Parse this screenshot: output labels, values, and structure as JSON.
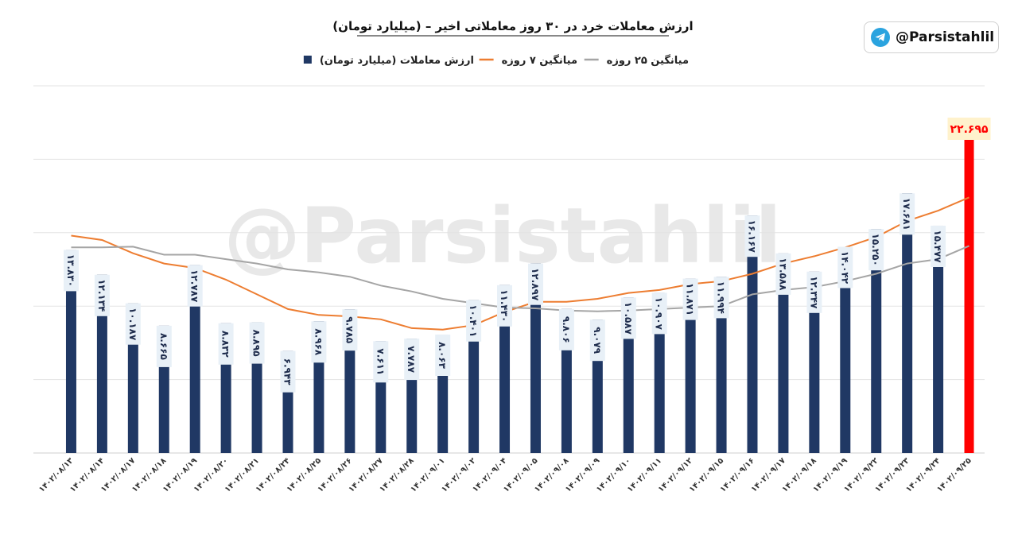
{
  "chart_data": {
    "type": "bar",
    "title": "ارزش معاملات خرد در ۳۰ روز معاملاتی اخیر – (میلیارد تومان)",
    "legend_position": "top",
    "grid": true,
    "ylim": [
      0,
      25000
    ],
    "categories": [
      "۱۴۰۲/۰۸/۱۳",
      "۱۴۰۲/۰۸/۱۴",
      "۱۴۰۲/۰۸/۱۷",
      "۱۴۰۲/۰۸/۱۸",
      "۱۴۰۲/۰۸/۱۹",
      "۱۴۰۲/۰۸/۲۰",
      "۱۴۰۲/۰۸/۲۱",
      "۱۴۰۲/۰۸/۲۴",
      "۱۴۰۲/۰۸/۲۵",
      "۱۴۰۲/۰۸/۲۶",
      "۱۴۰۲/۰۸/۲۷",
      "۱۴۰۲/۰۸/۲۸",
      "۱۴۰۲/۰۹/۰۱",
      "۱۴۰۲/۰۹/۰۲",
      "۱۴۰۲/۰۹/۰۴",
      "۱۴۰۲/۰۹/۰۵",
      "۱۴۰۲/۰۹/۰۸",
      "۱۴۰۲/۰۹/۰۹",
      "۱۴۰۲/۰۹/۱۰",
      "۱۴۰۲/۰۹/۱۱",
      "۱۴۰۲/۰۹/۱۲",
      "۱۴۰۲/۰۹/۱۵",
      "۱۴۰۲/۰۹/۱۶",
      "۱۴۰۲/۰۹/۱۷",
      "۱۴۰۲/۰۹/۱۸",
      "۱۴۰۲/۰۹/۱۹",
      "۱۴۰۲/۰۹/۲۲",
      "۱۴۰۲/۰۹/۲۳",
      "۱۴۰۲/۰۹/۲۴",
      "۱۴۰۲/۰۹/۲۵"
    ],
    "series": [
      {
        "name": "ارزش معاملات (میلیارد تومان)",
        "type": "bar",
        "color": "#203864",
        "highlight_color": "#ff0000",
        "values": [
          13830,
          12134,
          10187,
          8665,
          12787,
          8832,
          8895,
          6943,
          8968,
          9785,
          7611,
          7787,
          8063,
          10401,
          11430,
          12897,
          9806,
          9079,
          10587,
          10907,
          11871,
          11994,
          16167,
          13588,
          12347,
          14042,
          15250,
          17681,
          15477,
          22695
        ],
        "labels": [
          "۱۳.۸۳۰",
          "۱۲.۱۳۴",
          "۱۰.۱۸۷",
          "۸.۶۶۵",
          "۱۲.۷۸۷",
          "۸.۸۳۲",
          "۸.۸۹۵",
          "۶.۹۴۳",
          "۸.۹۶۸",
          "۹.۷۸۵",
          "۷.۶۱۱",
          "۷.۷۸۷",
          "۸.۰۶۳",
          "۱۰.۴۰۱",
          "۱۱.۴۳۰",
          "۱۲.۸۹۷",
          "۹.۸۰۶",
          "۹.۰۷۹",
          "۱۰.۵۸۷",
          "۱۰.۹۰۷",
          "۱۱.۸۷۱",
          "۱۱.۹۹۴",
          "۱۶.۱۶۷",
          "۱۳.۵۸۸",
          "۱۲.۳۴۷",
          "۱۴.۰۴۲",
          "۱۵.۲۵۰",
          "۱۷.۶۸۱",
          "۱۵.۴۷۷",
          "۲۲.۶۹۵"
        ]
      },
      {
        "name": "میانگین ۷ روزه",
        "type": "line",
        "color": "#ed7d31",
        "values": [
          14800,
          14500,
          13600,
          12900,
          12600,
          11800,
          10800,
          9800,
          9400,
          9300,
          9100,
          8500,
          8400,
          8700,
          9600,
          10300,
          10300,
          10500,
          10900,
          11100,
          11500,
          11700,
          12200,
          12900,
          13400,
          14000,
          14700,
          15800,
          16500,
          17400
        ]
      },
      {
        "name": "میانگین ۲۵ روزه",
        "type": "line",
        "color": "#a5a5a5",
        "values": [
          14000,
          14000,
          14050,
          13500,
          13500,
          13200,
          12900,
          12500,
          12300,
          12000,
          11400,
          11000,
          10500,
          10200,
          9900,
          9850,
          9700,
          9650,
          9700,
          9800,
          9900,
          10000,
          10800,
          11100,
          11300,
          11700,
          12200,
          12900,
          13200,
          14100
        ]
      }
    ]
  },
  "brand": {
    "handle": "@Parsistahlil",
    "watermark": "@Parsistahlil",
    "icon": "telegram-icon",
    "icon_color": "#2aa3df"
  }
}
